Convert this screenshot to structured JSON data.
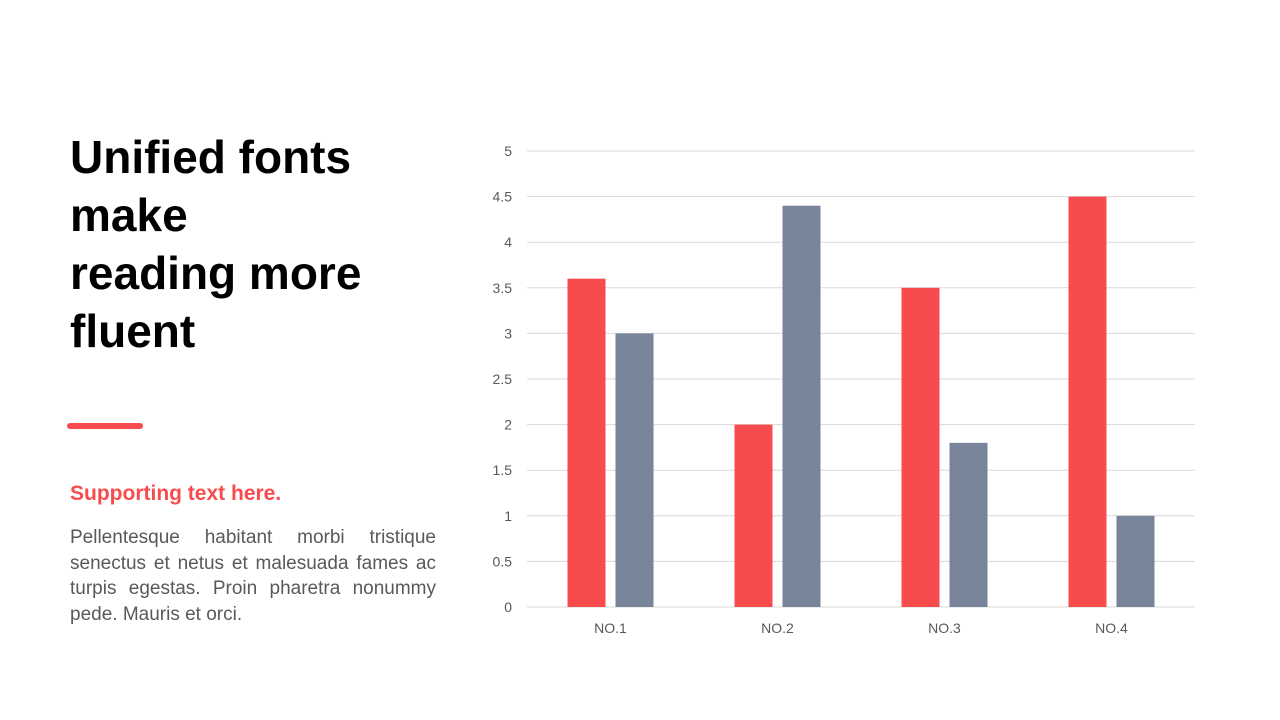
{
  "slide": {
    "title_lines": [
      "Unified fonts",
      "make",
      "reading more",
      "fluent"
    ],
    "subtitle": "Supporting text here.",
    "body": "Pellentesque habitant morbi tristique senectus et netus et malesuada fames ac turpis egestas. Proin pharetra nonummy pede. Mauris et orci."
  },
  "colors": {
    "accent": "#F84B4E",
    "secondary": "#77849A",
    "body_text": "#595959",
    "gridline": "#D9D9D9"
  },
  "chart_data": {
    "type": "bar",
    "categories": [
      "NO.1",
      "NO.2",
      "NO.3",
      "NO.4"
    ],
    "series": [
      {
        "values": [
          3.6,
          2,
          3.5,
          4.5
        ],
        "color": "#F84B4E"
      },
      {
        "values": [
          3,
          4.4,
          1.8,
          1
        ],
        "color": "#77849A"
      }
    ],
    "ylim": [
      0,
      5
    ],
    "yticks": [
      0,
      0.5,
      1,
      1.5,
      2,
      2.5,
      3,
      3.5,
      4,
      4.5,
      5
    ],
    "grid": true,
    "legend": "none"
  }
}
